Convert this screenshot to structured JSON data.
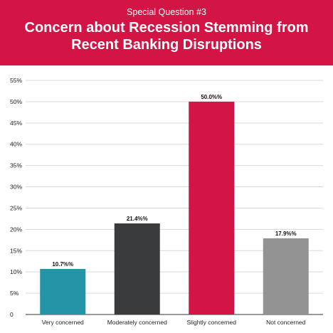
{
  "header": {
    "subtitle": "Special Question #3",
    "title": "Concern about Recession Stemming from Recent Banking Disruptions"
  },
  "colors": {
    "header_bg": "#d21545",
    "grid": "#d9d9d9",
    "axis": "#333333"
  },
  "chart_data": {
    "type": "bar",
    "title": "Concern about Recession Stemming from Recent Banking Disruptions",
    "categories": [
      "Very concerned",
      "Moderately concerned",
      "Slightly concerned",
      "Not concerned"
    ],
    "values": [
      10.7,
      21.4,
      50.0,
      17.9
    ],
    "data_labels": [
      "10.7%%",
      "21.4%%",
      "50.0%%",
      "17.9%%"
    ],
    "bar_colors": [
      "#2494a6",
      "#3a3b3d",
      "#d21545",
      "#939393"
    ],
    "ylim": [
      0,
      55
    ],
    "yticks": [
      0,
      5,
      10,
      15,
      20,
      25,
      30,
      35,
      40,
      45,
      50,
      55
    ],
    "ytick_labels": [
      "0",
      "5%",
      "10%",
      "15%",
      "20%",
      "25%",
      "30%",
      "35%",
      "40%",
      "45%",
      "50%",
      "55%"
    ],
    "xlabel": "",
    "ylabel": "",
    "grid": true,
    "legend": false
  }
}
